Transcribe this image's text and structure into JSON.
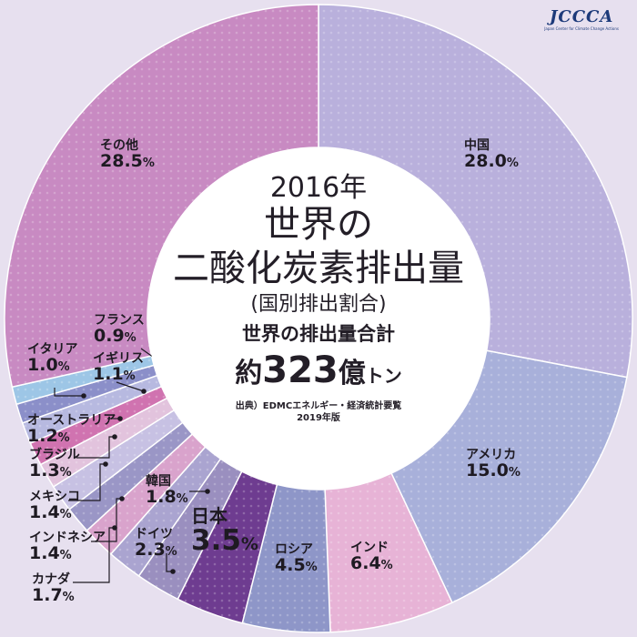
{
  "title": {
    "year": "2016年",
    "line1": "世界の",
    "line2": "二酸化炭素排出量",
    "line3": "(国別排出割合)",
    "total_label": "世界の排出量合計",
    "total_prefix": "約",
    "total_value": "323",
    "total_unit_big": "億",
    "total_unit_small": "トン",
    "source": "出典）EDMCエネルギー・経済統計要覧",
    "source_year": "2019年版"
  },
  "logo": {
    "text": "JCCCA",
    "sub": "Japan Center for Climate Change Actions"
  },
  "chart_data": {
    "type": "pie",
    "variant": "donut",
    "unit": "%",
    "slices": [
      {
        "name": "中国",
        "value": 28.0,
        "color": "#b9b0dc"
      },
      {
        "name": "アメリカ",
        "value": 15.0,
        "color": "#a8b0da"
      },
      {
        "name": "インド",
        "value": 6.4,
        "color": "#e7b3d6"
      },
      {
        "name": "ロシア",
        "value": 4.5,
        "color": "#8e96c8"
      },
      {
        "name": "日本",
        "value": 3.5,
        "color": "#6e3c90"
      },
      {
        "name": "ドイツ",
        "value": 2.3,
        "color": "#9a8fbf"
      },
      {
        "name": "韓国",
        "value": 1.8,
        "color": "#aaa4d0"
      },
      {
        "name": "カナダ",
        "value": 1.7,
        "color": "#d9a3cc"
      },
      {
        "name": "インドネシア",
        "value": 1.4,
        "color": "#9a96c6"
      },
      {
        "name": "メキシコ",
        "value": 1.4,
        "color": "#c7c1e3"
      },
      {
        "name": "ブラジル",
        "value": 1.3,
        "color": "#e2c3dd"
      },
      {
        "name": "オーストラリア",
        "value": 1.2,
        "color": "#d073b0"
      },
      {
        "name": "イギリス",
        "value": 1.1,
        "color": "#b7b9e0"
      },
      {
        "name": "イタリア",
        "value": 1.0,
        "color": "#8b8fc9"
      },
      {
        "name": "フランス",
        "value": 0.9,
        "color": "#9dc6e6"
      },
      {
        "name": "その他",
        "value": 28.5,
        "color": "#c88ac2"
      }
    ],
    "labels": [
      {
        "name": "中国",
        "value": "28.0"
      },
      {
        "name": "アメリカ",
        "value": "15.0"
      },
      {
        "name": "インド",
        "value": "6.4"
      },
      {
        "name": "ロシア",
        "value": "4.5"
      },
      {
        "name": "日本",
        "value": "3.5"
      },
      {
        "name": "ドイツ",
        "value": "2.3"
      },
      {
        "name": "韓国",
        "value": "1.8"
      },
      {
        "name": "カナダ",
        "value": "1.7"
      },
      {
        "name": "インドネシア",
        "value": "1.4"
      },
      {
        "name": "メキシコ",
        "value": "1.4"
      },
      {
        "name": "ブラジル",
        "value": "1.3"
      },
      {
        "name": "オーストラリア",
        "value": "1.2"
      },
      {
        "name": "イギリス",
        "value": "1.1"
      },
      {
        "name": "イタリア",
        "value": "1.0"
      },
      {
        "name": "フランス",
        "value": "0.9"
      },
      {
        "name": "その他",
        "value": "28.5"
      }
    ],
    "pct_symbol": "%"
  }
}
